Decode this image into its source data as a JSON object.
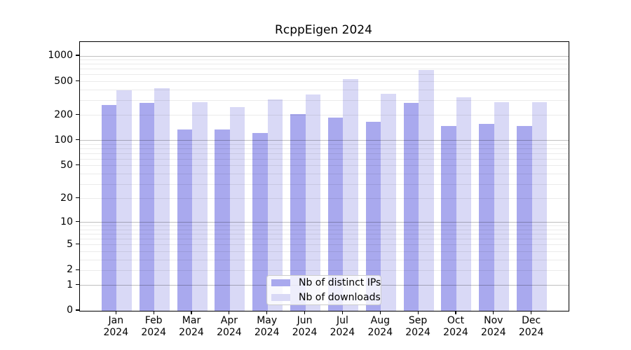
{
  "chart_data": {
    "type": "bar",
    "title": "RcppEigen 2024",
    "categories": [
      "Jan",
      "Feb",
      "Mar",
      "Apr",
      "May",
      "Jun",
      "Jul",
      "Aug",
      "Sep",
      "Oct",
      "Nov",
      "Dec"
    ],
    "x_tick_year": "2024",
    "series": [
      {
        "name": "Nb of distinct IPs",
        "color": "#a9a9ee",
        "values": [
          264,
          280,
          135,
          136,
          123,
          208,
          186,
          168,
          282,
          150,
          159,
          150
        ]
      },
      {
        "name": "Nb of downloads",
        "color": "#d9d9f6",
        "values": [
          393,
          420,
          286,
          252,
          310,
          353,
          540,
          356,
          683,
          327,
          286,
          286
        ]
      }
    ],
    "y_ticks": [
      0,
      1,
      2,
      5,
      10,
      20,
      50,
      100,
      200,
      500,
      1000
    ],
    "y_scale": "log1p",
    "ylim": [
      0,
      1300
    ],
    "grid": "horizontal log gridlines (minor + darker major at 1/10/100/1000), drawn over bars",
    "legend_position": "lower-center"
  }
}
